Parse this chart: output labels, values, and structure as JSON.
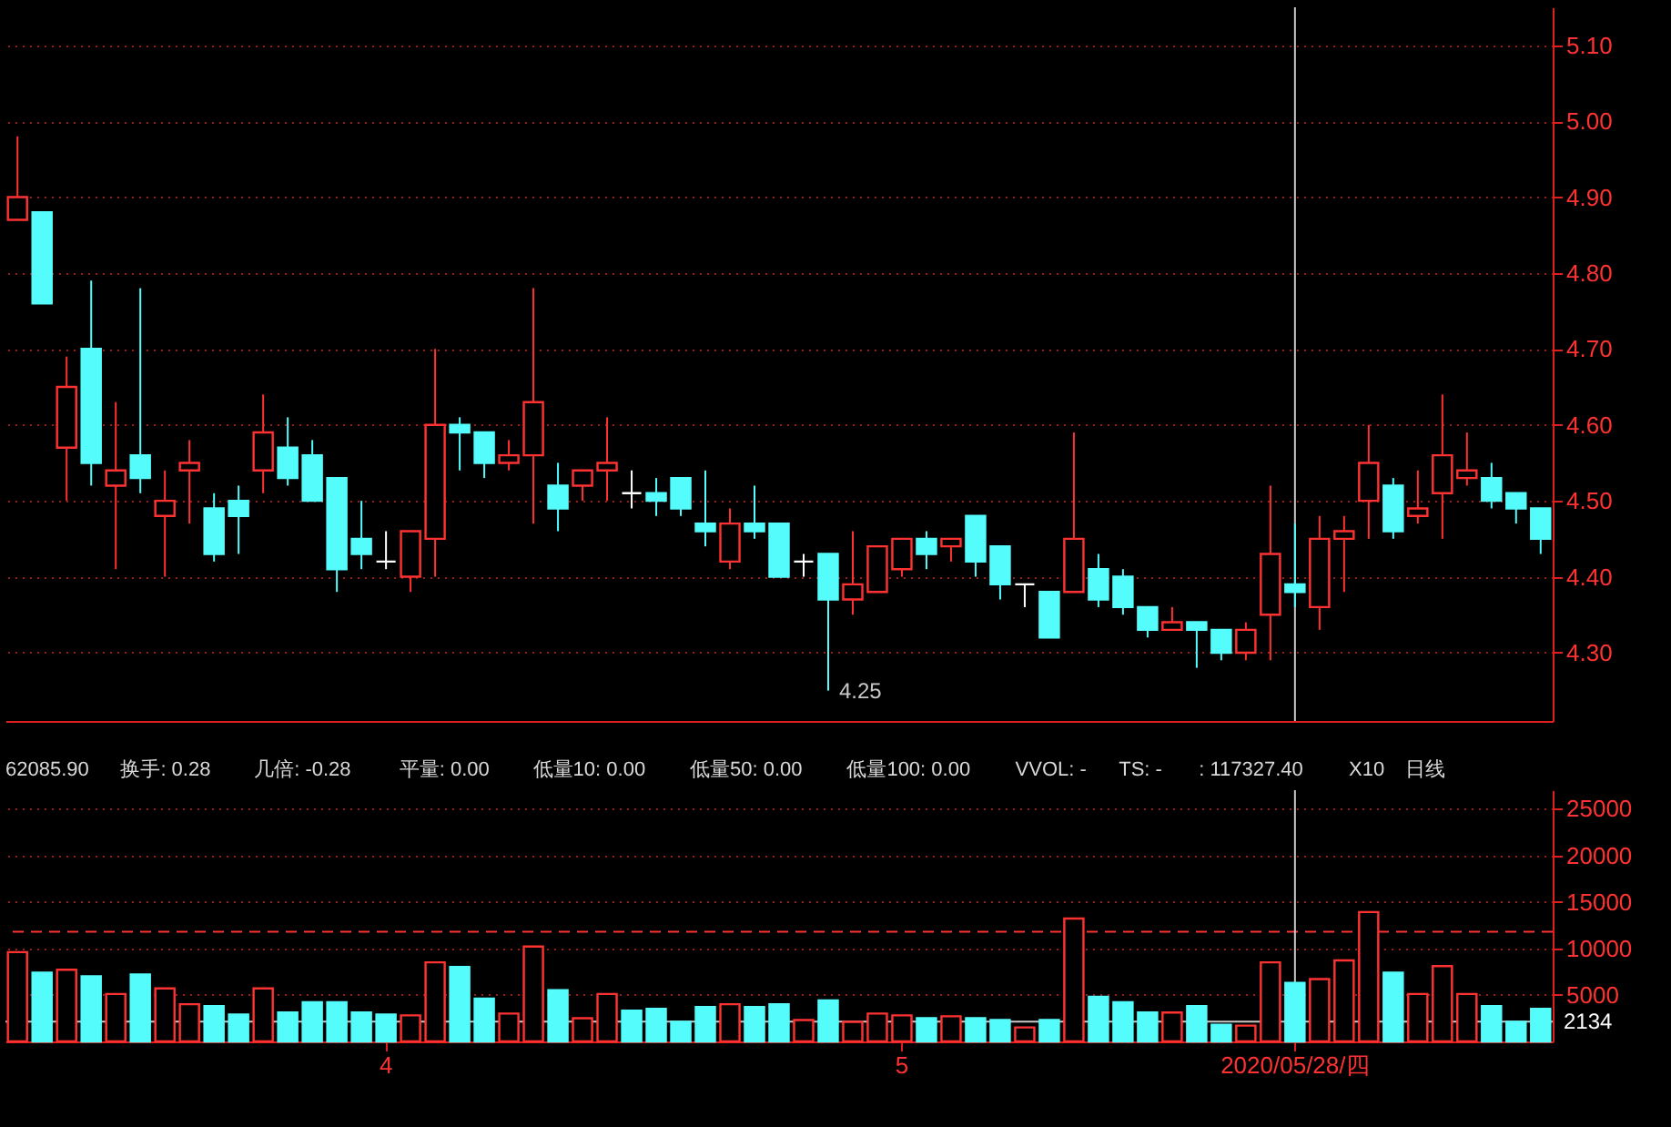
{
  "chart_data": [
    {
      "type": "candlestick",
      "tick_labels": "y",
      "grid": "y",
      "categories": [
        null,
        null,
        null,
        null,
        null,
        null,
        null,
        null,
        null,
        null,
        null,
        null,
        null,
        null,
        null,
        "4",
        null,
        null,
        null,
        null,
        null,
        null,
        null,
        null,
        null,
        null,
        null,
        null,
        null,
        null,
        null,
        null,
        null,
        null,
        null,
        null,
        "5",
        null,
        null,
        null,
        null,
        null,
        null,
        null,
        null,
        null,
        null,
        null,
        null,
        null,
        null,
        null,
        "2020/05/28/四",
        null,
        null,
        null,
        null,
        null,
        null,
        null,
        null,
        null,
        null
      ],
      "ohlc": [
        [
          4.87,
          4.98,
          4.87,
          4.9
        ],
        [
          4.88,
          4.88,
          4.76,
          4.76
        ],
        [
          4.57,
          4.69,
          4.5,
          4.65
        ],
        [
          4.7,
          4.79,
          4.52,
          4.55
        ],
        [
          4.52,
          4.63,
          4.41,
          4.54
        ],
        [
          4.56,
          4.78,
          4.51,
          4.53
        ],
        [
          4.48,
          4.54,
          4.4,
          4.5
        ],
        [
          4.54,
          4.58,
          4.47,
          4.55
        ],
        [
          4.49,
          4.51,
          4.42,
          4.43
        ],
        [
          4.5,
          4.52,
          4.43,
          4.48
        ],
        [
          4.54,
          4.64,
          4.51,
          4.59
        ],
        [
          4.57,
          4.61,
          4.52,
          4.53
        ],
        [
          4.56,
          4.58,
          4.5,
          4.5
        ],
        [
          4.53,
          4.53,
          4.38,
          4.41
        ],
        [
          4.45,
          4.5,
          4.41,
          4.43
        ],
        [
          4.42,
          4.46,
          4.41,
          4.42
        ],
        [
          4.4,
          4.46,
          4.38,
          4.46
        ],
        [
          4.45,
          4.7,
          4.4,
          4.6
        ],
        [
          4.6,
          4.61,
          4.54,
          4.59
        ],
        [
          4.59,
          4.59,
          4.53,
          4.55
        ],
        [
          4.55,
          4.58,
          4.54,
          4.56
        ],
        [
          4.56,
          4.78,
          4.47,
          4.63
        ],
        [
          4.52,
          4.55,
          4.46,
          4.49
        ],
        [
          4.52,
          4.54,
          4.5,
          4.54
        ],
        [
          4.54,
          4.61,
          4.5,
          4.55
        ],
        [
          4.51,
          4.54,
          4.49,
          4.51
        ],
        [
          4.51,
          4.53,
          4.48,
          4.5
        ],
        [
          4.53,
          4.53,
          4.48,
          4.49
        ],
        [
          4.47,
          4.54,
          4.44,
          4.46
        ],
        [
          4.42,
          4.49,
          4.41,
          4.47
        ],
        [
          4.47,
          4.52,
          4.45,
          4.46
        ],
        [
          4.47,
          4.47,
          4.4,
          4.4
        ],
        [
          4.42,
          4.43,
          4.4,
          4.42
        ],
        [
          4.43,
          4.43,
          4.25,
          4.37
        ],
        [
          4.37,
          4.46,
          4.35,
          4.39
        ],
        [
          4.38,
          4.44,
          4.38,
          4.44
        ],
        [
          4.41,
          4.45,
          4.4,
          4.45
        ],
        [
          4.45,
          4.46,
          4.41,
          4.43
        ],
        [
          4.44,
          4.45,
          4.42,
          4.45
        ],
        [
          4.48,
          4.48,
          4.4,
          4.42
        ],
        [
          4.44,
          4.44,
          4.37,
          4.39
        ],
        [
          4.39,
          4.39,
          4.36,
          4.39
        ],
        [
          4.38,
          4.38,
          4.32,
          4.32
        ],
        [
          4.38,
          4.59,
          4.38,
          4.45
        ],
        [
          4.41,
          4.43,
          4.36,
          4.37
        ],
        [
          4.4,
          4.41,
          4.35,
          4.36
        ],
        [
          4.36,
          4.36,
          4.32,
          4.33
        ],
        [
          4.33,
          4.36,
          4.33,
          4.34
        ],
        [
          4.34,
          4.34,
          4.28,
          4.33
        ],
        [
          4.33,
          4.33,
          4.29,
          4.3
        ],
        [
          4.3,
          4.34,
          4.29,
          4.33
        ],
        [
          4.35,
          4.52,
          4.29,
          4.43
        ],
        [
          4.39,
          4.47,
          4.36,
          4.38
        ],
        [
          4.36,
          4.48,
          4.33,
          4.45
        ],
        [
          4.45,
          4.48,
          4.38,
          4.46
        ],
        [
          4.5,
          4.6,
          4.45,
          4.55
        ],
        [
          4.52,
          4.53,
          4.45,
          4.46
        ],
        [
          4.48,
          4.54,
          4.47,
          4.49
        ],
        [
          4.51,
          4.64,
          4.45,
          4.56
        ],
        [
          4.53,
          4.59,
          4.52,
          4.54
        ],
        [
          4.53,
          4.55,
          4.49,
          4.5
        ],
        [
          4.51,
          4.51,
          4.47,
          4.49
        ],
        [
          4.49,
          4.49,
          4.43,
          4.45
        ]
      ],
      "colors": [
        "#ff3232",
        "#54fcfc",
        "#ff3232",
        "#54fcfc",
        "#ff3232",
        "#54fcfc",
        "#ff3232",
        "#ff3232",
        "#54fcfc",
        "#54fcfc",
        "#ff3232",
        "#54fcfc",
        "#54fcfc",
        "#54fcfc",
        "#54fcfc",
        "#ffffff",
        "#ff3232",
        "#ff3232",
        "#54fcfc",
        "#54fcfc",
        "#ff3232",
        "#ff3232",
        "#54fcfc",
        "#ff3232",
        "#ff3232",
        "#ffffff",
        "#54fcfc",
        "#54fcfc",
        "#54fcfc",
        "#ff3232",
        "#54fcfc",
        "#54fcfc",
        "#ffffff",
        "#54fcfc",
        "#ff3232",
        "#ff3232",
        "#ff3232",
        "#54fcfc",
        "#ff3232",
        "#54fcfc",
        "#54fcfc",
        "#ffffff",
        "#54fcfc",
        "#ff3232",
        "#54fcfc",
        "#54fcfc",
        "#54fcfc",
        "#ff3232",
        "#54fcfc",
        "#54fcfc",
        "#ff3232",
        "#ff3232",
        "#54fcfc",
        "#ff3232",
        "#ff3232",
        "#ff3232",
        "#54fcfc",
        "#ff3232",
        "#ff3232",
        "#ff3232",
        "#54fcfc",
        "#54fcfc",
        "#54fcfc"
      ],
      "value_labels": [
        null,
        null,
        null,
        null,
        null,
        null,
        null,
        null,
        null,
        null,
        null,
        null,
        null,
        null,
        null,
        null,
        null,
        null,
        null,
        null,
        null,
        null,
        null,
        null,
        null,
        null,
        null,
        null,
        null,
        null,
        null,
        null,
        null,
        "4.25",
        null,
        null,
        null,
        null,
        null,
        null,
        null,
        null,
        null,
        null,
        null,
        null,
        null,
        null,
        null,
        null,
        null,
        null,
        null,
        null,
        null,
        null,
        null,
        null,
        null,
        null,
        null,
        null,
        null
      ],
      "ylim": [
        4.21,
        5.15
      ],
      "yticks": [
        {
          "value": 4.3,
          "label": "4.30"
        },
        {
          "value": 4.4,
          "label": "4.40"
        },
        {
          "value": 4.5,
          "label": "4.50"
        },
        {
          "value": 4.6,
          "label": "4.60"
        },
        {
          "value": 4.7,
          "label": "4.70"
        },
        {
          "value": 4.8,
          "label": "4.80"
        },
        {
          "value": 4.9,
          "label": "4.90"
        },
        {
          "value": 5.0,
          "label": "5.00"
        },
        {
          "value": 5.1,
          "label": "5.10"
        }
      ],
      "ref_lines": [
        {
          "axis": "x",
          "value": "2020/05/28/四",
          "color": "#c8c8c8"
        }
      ]
    },
    {
      "type": "bar",
      "grid": "y",
      "categories": [
        null,
        null,
        null,
        null,
        null,
        null,
        null,
        null,
        null,
        null,
        null,
        null,
        null,
        null,
        null,
        "4",
        null,
        null,
        null,
        null,
        null,
        null,
        null,
        null,
        null,
        null,
        null,
        null,
        null,
        null,
        null,
        null,
        null,
        null,
        null,
        null,
        "5",
        null,
        null,
        null,
        null,
        null,
        null,
        null,
        null,
        null,
        null,
        null,
        null,
        null,
        null,
        null,
        "2020/05/28/四",
        null,
        null,
        null,
        null,
        null,
        null,
        null,
        null,
        null,
        null
      ],
      "values": [
        9600,
        7400,
        7700,
        7000,
        5100,
        7200,
        5700,
        4000,
        3800,
        2900,
        5700,
        3100,
        4200,
        4200,
        3100,
        2900,
        2800,
        8500,
        8000,
        4600,
        3000,
        10200,
        5500,
        2500,
        5100,
        3300,
        3500,
        2100,
        3700,
        4000,
        3700,
        4000,
        2300,
        4400,
        2100,
        3000,
        2800,
        2500,
        2700,
        2500,
        2300,
        1500,
        2300,
        13200,
        4800,
        4200,
        3100,
        3100,
        3800,
        1800,
        1700,
        8500,
        6300,
        6700,
        8700,
        13900,
        7400,
        5100,
        8100,
        5100,
        3800,
        2100,
        3500
      ],
      "colors": [
        "#ff3232",
        "#54fcfc",
        "#ff3232",
        "#54fcfc",
        "#ff3232",
        "#54fcfc",
        "#ff3232",
        "#ff3232",
        "#54fcfc",
        "#54fcfc",
        "#ff3232",
        "#54fcfc",
        "#54fcfc",
        "#54fcfc",
        "#54fcfc",
        "#54fcfc",
        "#ff3232",
        "#ff3232",
        "#54fcfc",
        "#54fcfc",
        "#ff3232",
        "#ff3232",
        "#54fcfc",
        "#ff3232",
        "#ff3232",
        "#54fcfc",
        "#54fcfc",
        "#54fcfc",
        "#54fcfc",
        "#ff3232",
        "#54fcfc",
        "#54fcfc",
        "#ff3232",
        "#54fcfc",
        "#ff3232",
        "#ff3232",
        "#ff3232",
        "#54fcfc",
        "#ff3232",
        "#54fcfc",
        "#54fcfc",
        "#ff3232",
        "#54fcfc",
        "#ff3232",
        "#54fcfc",
        "#54fcfc",
        "#54fcfc",
        "#ff3232",
        "#54fcfc",
        "#54fcfc",
        "#ff3232",
        "#ff3232",
        "#54fcfc",
        "#ff3232",
        "#ff3232",
        "#ff3232",
        "#54fcfc",
        "#ff3232",
        "#ff3232",
        "#ff3232",
        "#54fcfc",
        "#54fcfc",
        "#54fcfc"
      ],
      "ylim": [
        0,
        27000
      ],
      "yticks": [
        5000,
        10000,
        15000,
        20000,
        25000
      ],
      "ref_lines": [
        {
          "axis": "y",
          "value": 11800,
          "color": "#ff3232",
          "line_style": "dashed"
        },
        {
          "axis": "y",
          "value": 2134,
          "label": "2134",
          "color": "#c8c8c8"
        },
        {
          "axis": "x",
          "value": "2020/05/28/四",
          "color": "#c8c8c8"
        }
      ],
      "annotations": [
        "62085.90",
        "换手: 0.28",
        "几倍: -0.28",
        "平量: 0.00",
        "低量10: 0.00",
        "低量50: 0.00",
        "低量100: 0.00",
        "VVOL: -",
        "TS: -",
        ": 117327.40",
        "X10",
        "日线"
      ]
    }
  ]
}
